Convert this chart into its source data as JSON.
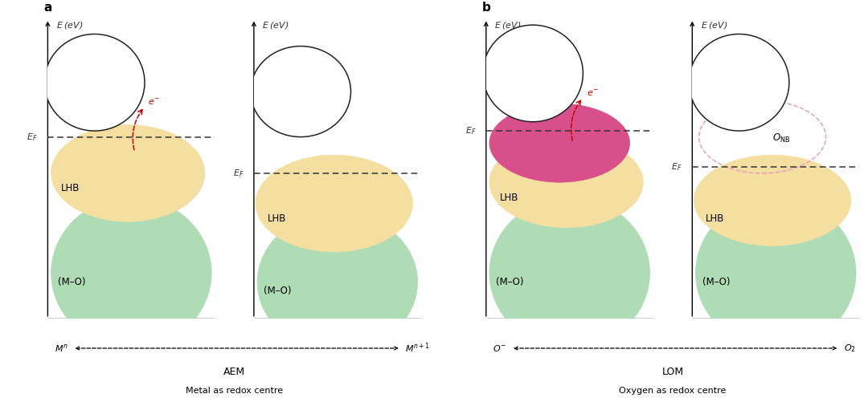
{
  "fig_width": 10.8,
  "fig_height": 4.96,
  "bg_color": "#ffffff",
  "lhb_color": "#f5dfa0",
  "mo_color": "#aedcb5",
  "onb_color": "#d94f8a",
  "onb_dashed_color": "#e8a0bb",
  "arrow_color": "#cc0000",
  "uhb_edge": "#222222",
  "axis_color": "#333333",
  "text_color": "#333333",
  "panel_a_label": "a",
  "panel_b_label": "b",
  "aem_label": "AEM",
  "aem_sub": "Metal as redox centre",
  "lom_label": "LOM",
  "lom_sub": "Oxygen as redox centre"
}
